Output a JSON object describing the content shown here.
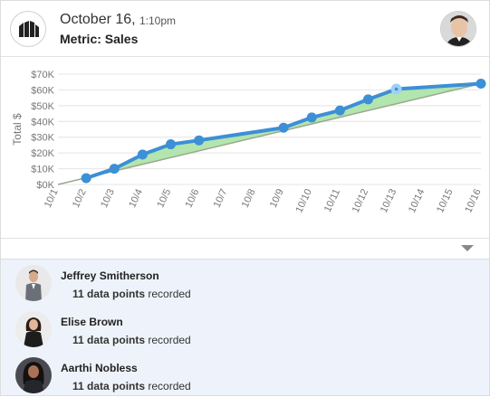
{
  "header": {
    "date": "October 16,",
    "time": "1:10pm",
    "metric_label": "Metric: Sales",
    "logo_icon": "building-logo-icon",
    "avatar_icon": "user-avatar-icon"
  },
  "chart_data": {
    "type": "line",
    "ylabel": "Total $",
    "xlabel": "",
    "categories": [
      "10/1",
      "10/2",
      "10/3",
      "10/4",
      "10/5",
      "10/6",
      "10/7",
      "10/8",
      "10/9",
      "10/10",
      "10/11",
      "10/12",
      "10/13",
      "10/14",
      "10/15",
      "10/16"
    ],
    "y_ticks": [
      "$0K",
      "$10K",
      "$20K",
      "$30K",
      "$40K",
      "$50K",
      "$60K",
      "$70K"
    ],
    "ylim": [
      0,
      70000
    ],
    "grid": true,
    "series": [
      {
        "values": [
          null,
          4000,
          10000,
          19000,
          25500,
          28000,
          null,
          null,
          36000,
          42500,
          47000,
          54000,
          60500,
          null,
          null,
          64000
        ],
        "color": "#3d8fd6",
        "highlight_index": 12
      },
      {
        "values": [
          0,
          null,
          null,
          null,
          null,
          null,
          null,
          null,
          null,
          null,
          null,
          null,
          null,
          null,
          null,
          64000
        ],
        "color": "#9aa98e"
      }
    ],
    "fill_color": "#a6e0a0"
  },
  "users": [
    {
      "name": "Jeffrey Smitherson",
      "count": "11 data points",
      "suffix": " recorded"
    },
    {
      "name": "Elise Brown",
      "count": "11 data points",
      "suffix": " recorded"
    },
    {
      "name": "Aarthi Nobless",
      "count": "11 data points",
      "suffix": " recorded"
    }
  ],
  "expand_icon": "chevron-down-icon"
}
